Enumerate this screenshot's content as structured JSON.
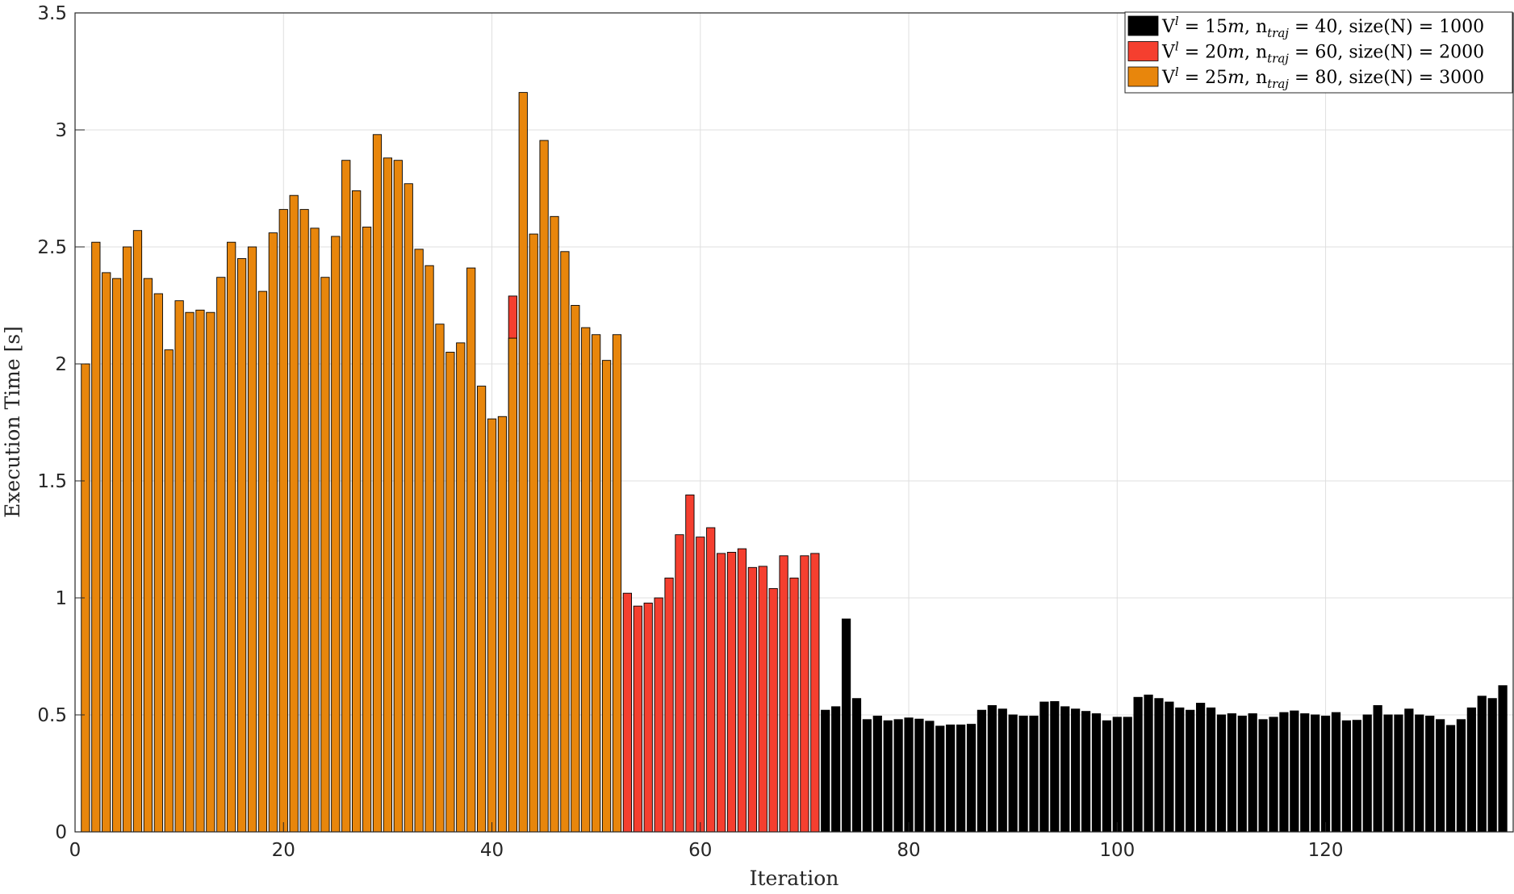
{
  "chart_data": {
    "type": "bar",
    "xlabel": "Iteration",
    "ylabel": "Execution Time [s]",
    "xlim": [
      0,
      138
    ],
    "ylim": [
      0,
      3.5
    ],
    "xticks": [
      "0",
      "20",
      "40",
      "60",
      "80",
      "100",
      "120"
    ],
    "yticks": [
      "0",
      "0.5",
      "1",
      "1.5",
      "2",
      "2.5",
      "3",
      "3.5"
    ],
    "grid": true,
    "legend_position": "top-right",
    "series": [
      {
        "name": "V^l = 15m, n_traj = 40, size(N) = 1000",
        "legend_parts": {
          "v": "V",
          "v_sup": "l",
          "v_val": " = 15",
          "v_unit": "m",
          "n": ", n",
          "n_sub": "traj",
          "rest": " = 40, size(N) = 1000"
        },
        "color": "#000000",
        "x_start": 72,
        "values": [
          0.52,
          0.535,
          0.91,
          0.57,
          0.48,
          0.495,
          0.475,
          0.48,
          0.487,
          0.482,
          0.473,
          0.452,
          0.457,
          0.457,
          0.46,
          0.52,
          0.54,
          0.525,
          0.5,
          0.495,
          0.495,
          0.555,
          0.557,
          0.535,
          0.525,
          0.515,
          0.505,
          0.475,
          0.49,
          0.49,
          0.575,
          0.585,
          0.57,
          0.555,
          0.53,
          0.52,
          0.55,
          0.53,
          0.5,
          0.505,
          0.495,
          0.505,
          0.48,
          0.49,
          0.51,
          0.517,
          0.505,
          0.5,
          0.495,
          0.51,
          0.475,
          0.477,
          0.5,
          0.54,
          0.5,
          0.5,
          0.525,
          0.5,
          0.495,
          0.48,
          0.455,
          0.48,
          0.53,
          0.58,
          0.57,
          0.625
        ]
      },
      {
        "name": "V^l = 20m, n_traj = 60, size(N) = 2000",
        "legend_parts": {
          "v": "V",
          "v_sup": "l",
          "v_val": " = 20",
          "v_unit": "m",
          "n": ", n",
          "n_sub": "traj",
          "rest": " = 60, size(N) = 2000"
        },
        "color": "#f53f2f",
        "x_start": 42,
        "values": [
          2.29
        ],
        "x_start_2": 53,
        "values_2": [
          1.02,
          0.965,
          0.978,
          1.0,
          1.085,
          1.27,
          1.44,
          1.26,
          1.3,
          1.19,
          1.195,
          1.21,
          1.13,
          1.135,
          1.04,
          1.18,
          1.085,
          1.18,
          1.19
        ]
      },
      {
        "name": "V^l = 25m, n_traj = 80, size(N) = 3000",
        "legend_parts": {
          "v": "V",
          "v_sup": "l",
          "v_val": " = 25",
          "v_unit": "m",
          "n": ", n",
          "n_sub": "traj",
          "rest": " = 80, size(N) = 3000"
        },
        "color": "#e8860c",
        "x_start": 1,
        "values": [
          2.0,
          2.52,
          2.39,
          2.365,
          2.5,
          2.57,
          2.365,
          2.3,
          2.06,
          2.27,
          2.22,
          2.23,
          2.22,
          2.37,
          2.52,
          2.45,
          2.5,
          2.31,
          2.56,
          2.66,
          2.72,
          2.66,
          2.58,
          2.37,
          2.545,
          2.87,
          2.74,
          2.585,
          2.98,
          2.88,
          2.87,
          2.77,
          2.49,
          2.42,
          2.17,
          2.05,
          2.09,
          2.41,
          1.905,
          1.765,
          1.775,
          2.11,
          3.16,
          2.555,
          2.955,
          2.63,
          2.48,
          2.25,
          2.155,
          2.125,
          2.015,
          2.125
        ]
      }
    ]
  }
}
